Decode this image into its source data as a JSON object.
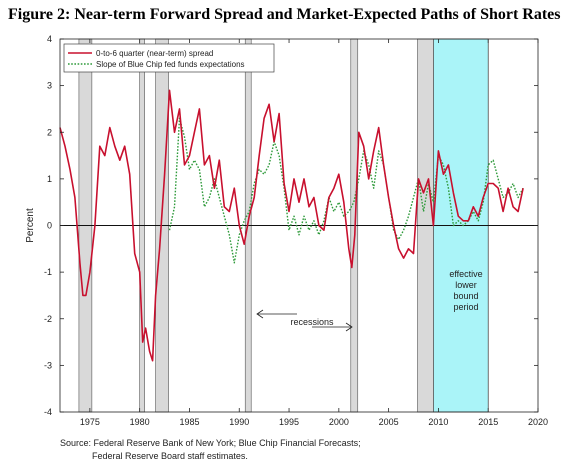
{
  "title": "Figure 2:  Near-term Forward Spread and Market-Expected Paths of Short Rates",
  "source": {
    "line1": "Source: Federal Reserve Bank of New York; Blue Chip Financial Forecasts;",
    "line2": "Federal Reserve Board staff estimates."
  },
  "colors": {
    "spread": "#c8102e",
    "bluechip": "#2e9a3a",
    "recession_fill": "#d9d9d9",
    "elb_fill": "#aaf4f8"
  },
  "chart_data": {
    "type": "line",
    "xlabel": "",
    "ylabel": "Percent",
    "xlim": [
      1972,
      2020
    ],
    "ylim": [
      -4,
      4
    ],
    "x_ticks": [
      "1975",
      "1980",
      "1985",
      "1990",
      "1995",
      "2000",
      "2005",
      "2010",
      "2015",
      "2020"
    ],
    "y_ticks": [
      "-4",
      "-3",
      "-2",
      "-1",
      "0",
      "1",
      "2",
      "3",
      "4"
    ],
    "grid": false,
    "legend_position": "top-left",
    "series": [
      {
        "name": "0-to-6 quarter (near-term) spread",
        "style": "solid",
        "x": [
          1972.0,
          1972.5,
          1973.0,
          1973.5,
          1974.0,
          1974.3,
          1974.6,
          1975.0,
          1975.5,
          1976.0,
          1976.5,
          1977.0,
          1977.5,
          1978.0,
          1978.5,
          1979.0,
          1979.5,
          1980.0,
          1980.3,
          1980.6,
          1981.0,
          1981.3,
          1981.6,
          1982.0,
          1982.5,
          1983.0,
          1983.5,
          1984.0,
          1984.5,
          1985.0,
          1985.5,
          1986.0,
          1986.5,
          1987.0,
          1987.5,
          1988.0,
          1988.5,
          1989.0,
          1989.5,
          1990.0,
          1990.5,
          1991.0,
          1991.5,
          1992.0,
          1992.5,
          1993.0,
          1993.5,
          1994.0,
          1994.5,
          1995.0,
          1995.5,
          1996.0,
          1996.5,
          1997.0,
          1997.5,
          1998.0,
          1998.5,
          1999.0,
          1999.5,
          2000.0,
          2000.5,
          2001.0,
          2001.3,
          2001.6,
          2002.0,
          2002.5,
          2003.0,
          2003.5,
          2004.0,
          2004.5,
          2005.0,
          2005.5,
          2006.0,
          2006.5,
          2007.0,
          2007.5,
          2008.0,
          2008.5,
          2009.0,
          2009.5,
          2010.0,
          2010.5,
          2011.0,
          2011.5,
          2012.0,
          2012.5,
          2013.0,
          2013.5,
          2014.0,
          2014.5,
          2015.0,
          2015.5,
          2016.0,
          2016.5,
          2017.0,
          2017.5,
          2018.0,
          2018.5
        ],
        "values": [
          2.1,
          1.7,
          1.2,
          0.6,
          -0.8,
          -1.5,
          -1.5,
          -1.0,
          0.0,
          1.7,
          1.5,
          2.1,
          1.7,
          1.4,
          1.7,
          1.1,
          -0.6,
          -1.0,
          -2.5,
          -2.2,
          -2.7,
          -2.9,
          -1.5,
          -0.5,
          1.1,
          2.9,
          2.0,
          2.5,
          1.3,
          1.5,
          2.0,
          2.5,
          1.3,
          1.5,
          0.8,
          1.4,
          0.4,
          0.3,
          0.8,
          0.0,
          -0.4,
          0.2,
          0.6,
          1.5,
          2.3,
          2.6,
          1.8,
          2.4,
          0.9,
          0.3,
          1.0,
          0.5,
          1.0,
          0.4,
          0.6,
          0.0,
          -0.1,
          0.6,
          0.8,
          1.1,
          0.5,
          -0.5,
          -0.9,
          -0.2,
          2.0,
          1.7,
          1.0,
          1.6,
          2.1,
          1.3,
          0.6,
          0.0,
          -0.5,
          -0.7,
          -0.5,
          -0.6,
          1.0,
          0.7,
          1.0,
          0.0,
          1.6,
          1.1,
          1.3,
          0.7,
          0.2,
          0.1,
          0.1,
          0.4,
          0.2,
          0.6,
          0.9,
          0.9,
          0.8,
          0.3,
          0.8,
          0.4,
          0.3,
          0.8
        ]
      },
      {
        "name": "Slope of Blue Chip fed funds expectations",
        "style": "dotted",
        "x": [
          1983.0,
          1983.5,
          1984.0,
          1984.5,
          1985.0,
          1985.5,
          1986.0,
          1986.5,
          1987.0,
          1987.5,
          1988.0,
          1988.5,
          1989.0,
          1989.5,
          1990.0,
          1990.5,
          1991.0,
          1991.5,
          1992.0,
          1992.5,
          1993.0,
          1993.5,
          1994.0,
          1994.5,
          1995.0,
          1995.5,
          1996.0,
          1996.5,
          1997.0,
          1997.5,
          1998.0,
          1998.5,
          1999.0,
          1999.5,
          2000.0,
          2000.5,
          2001.0,
          2001.5,
          2002.0,
          2002.5,
          2003.0,
          2003.5,
          2004.0,
          2004.5,
          2005.0,
          2005.5,
          2006.0,
          2006.5,
          2007.0,
          2007.5,
          2008.0,
          2008.5,
          2009.0,
          2009.5,
          2010.0,
          2010.5,
          2011.0,
          2011.5,
          2012.0,
          2012.5,
          2013.0,
          2013.5,
          2014.0,
          2014.5,
          2015.0,
          2015.5,
          2016.0,
          2016.5,
          2017.0,
          2017.5,
          2018.0,
          2018.5
        ],
        "values": [
          -0.1,
          0.4,
          2.3,
          1.9,
          1.2,
          1.4,
          1.2,
          0.4,
          0.6,
          1.0,
          0.6,
          0.2,
          -0.2,
          -0.8,
          -0.2,
          0.1,
          0.3,
          0.9,
          1.2,
          1.1,
          1.3,
          1.8,
          1.5,
          0.8,
          -0.1,
          0.2,
          -0.2,
          0.2,
          -0.1,
          0.1,
          -0.2,
          0.1,
          0.6,
          0.3,
          0.5,
          0.2,
          0.3,
          0.5,
          1.0,
          1.6,
          1.3,
          0.8,
          1.6,
          1.3,
          0.6,
          -0.1,
          -0.3,
          -0.1,
          0.2,
          0.6,
          1.0,
          0.3,
          0.9,
          0.5,
          1.5,
          1.3,
          0.8,
          0.0,
          0.1,
          0.0,
          0.1,
          0.3,
          0.1,
          0.5,
          1.3,
          1.4,
          1.0,
          0.6,
          0.7,
          0.9,
          0.6,
          0.8
        ]
      }
    ],
    "recessions": [
      [
        1973.9,
        1975.2
      ],
      [
        1980.0,
        1980.5
      ],
      [
        1981.6,
        1982.9
      ],
      [
        1990.6,
        1991.2
      ],
      [
        2001.2,
        2001.9
      ],
      [
        2007.9,
        2009.5
      ]
    ],
    "elb_period": [
      2009.5,
      2015.0
    ],
    "annotations": {
      "recessions": "recessions",
      "elb_lines": [
        "effective",
        "lower",
        "bound",
        "period"
      ]
    }
  }
}
